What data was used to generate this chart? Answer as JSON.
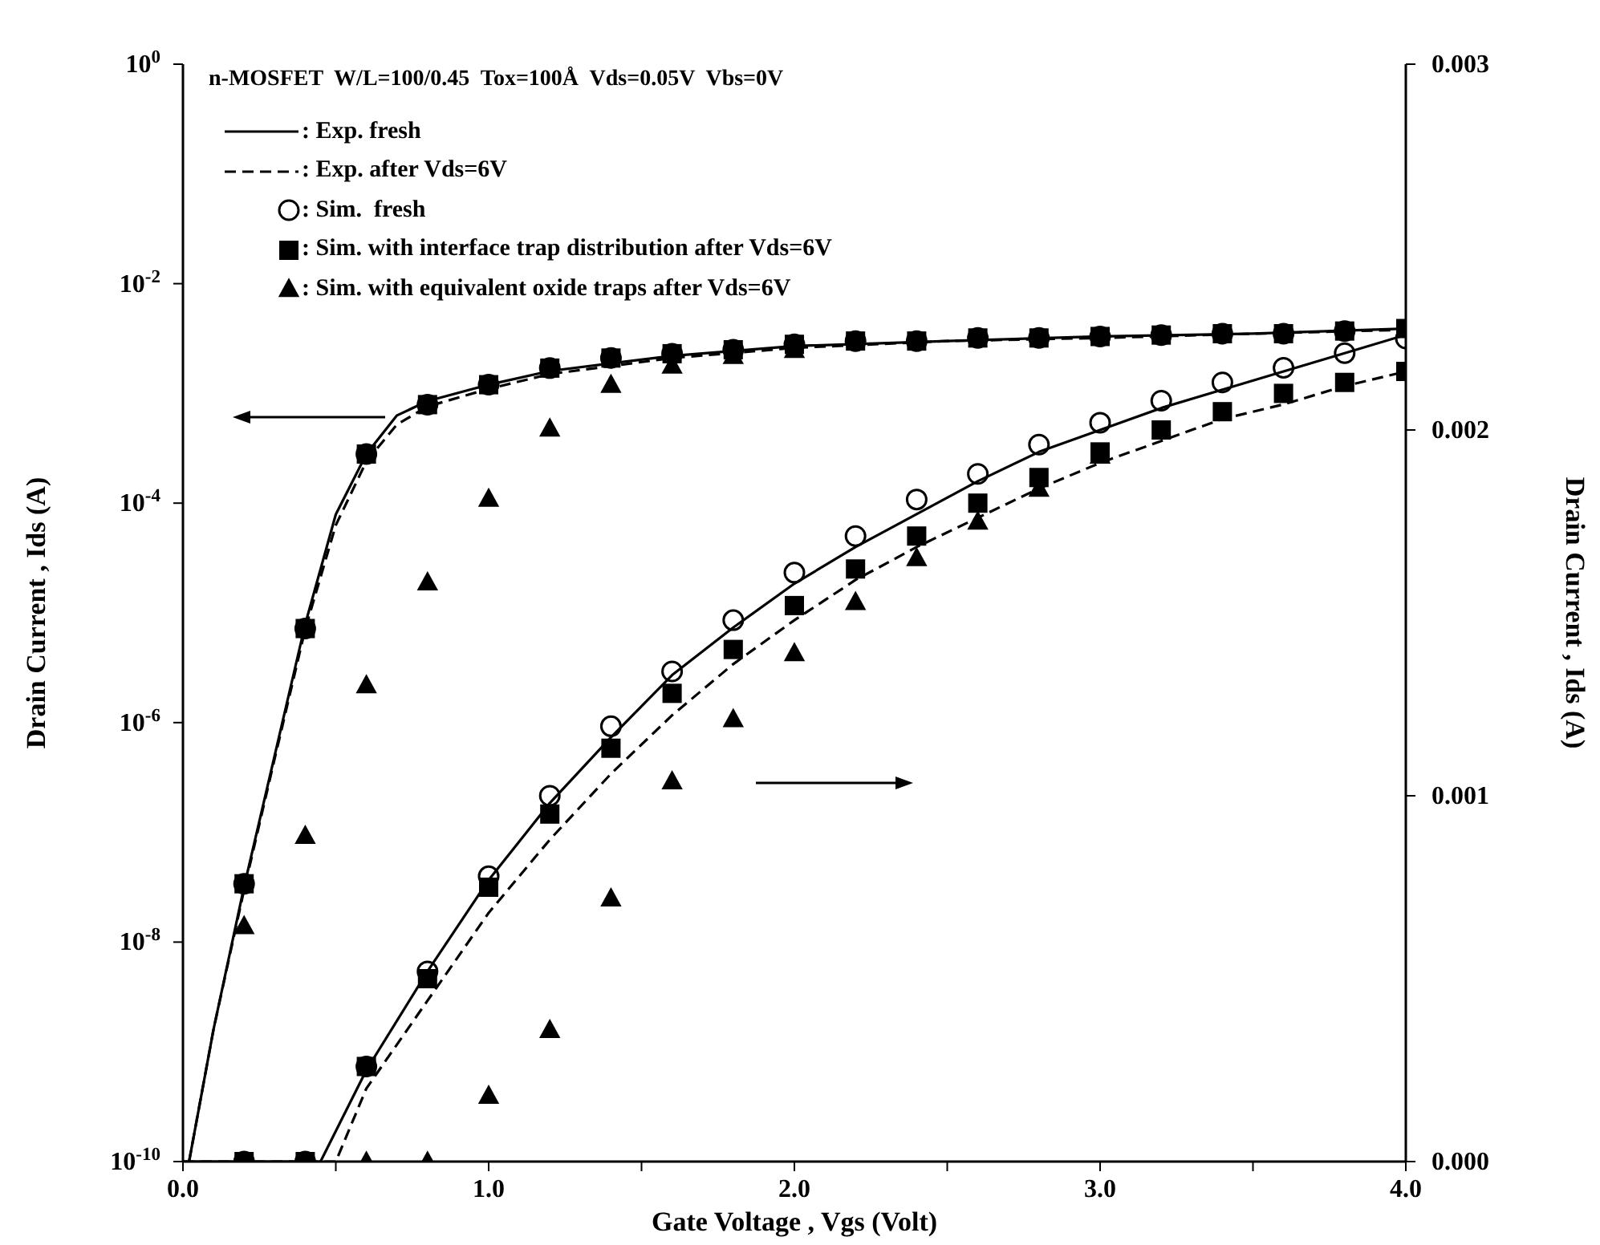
{
  "chart_data": {
    "type": "scatter",
    "title": "n-MOSFET  W/L=100/0.45  Tox=100Å  Vds=0.05V  Vbs=0V",
    "xlabel": "Gate Voltage , Vgs (Volt)",
    "ylabel": "Drain Current , Ids (A)",
    "y2label": "Drain Current , Ids (A)",
    "log": "y",
    "legend": "top left",
    "xlim": [
      0,
      4
    ],
    "xticks": [
      {
        "value": 0,
        "label": "0.0"
      },
      {
        "value": 0.5,
        "label": null
      },
      {
        "value": 1,
        "label": "1.0"
      },
      {
        "value": 1.5,
        "label": null
      },
      {
        "value": 2,
        "label": "2.0"
      },
      {
        "value": 2.5,
        "label": null
      },
      {
        "value": 3,
        "label": "3.0"
      },
      {
        "value": 3.5,
        "label": null
      },
      {
        "value": 4,
        "label": "4.0"
      }
    ],
    "ylim": [
      1e-10,
      1
    ],
    "yticks": [
      {
        "value": 1e-10,
        "label": "10$^{-10}$"
      },
      {
        "value": 1e-08,
        "label": "10$^{-8}$"
      },
      {
        "value": 1e-06,
        "label": "10$^{-6}$"
      },
      {
        "value": 0.0001,
        "label": "10$^{-4}$"
      },
      {
        "value": 0.01,
        "label": "10$^{-2}$"
      },
      {
        "value": 1,
        "label": "10$^{0}$"
      }
    ],
    "y2lim": [
      0,
      0.003
    ],
    "y2ticks": [
      {
        "value": 0,
        "label": "0.000"
      },
      {
        "value": 0.001,
        "label": "0.001"
      },
      {
        "value": 0.002,
        "label": "0.002"
      },
      {
        "value": 0.003,
        "label": "0.003"
      }
    ],
    "series": [
      {
        "name": ": Exp. fresh",
        "type": "line",
        "line_style": "solid",
        "marker": "none",
        "color": "#000000",
        "axis": "y",
        "x": [
          0.02,
          0.1,
          0.2,
          0.3,
          0.4,
          0.5,
          0.6,
          0.7,
          0.8,
          1.0,
          1.2,
          1.6,
          2.0,
          2.5,
          3.0,
          3.5,
          4.0
        ],
        "values": [
          1e-10,
          1.6e-09,
          3.2e-08,
          5e-07,
          7.9e-06,
          7.9e-05,
          0.00028,
          0.00063,
          0.00085,
          0.0012,
          0.0016,
          0.0022,
          0.0027,
          0.003,
          0.0033,
          0.0035,
          0.0039
        ]
      },
      {
        "name": ": Exp. after Vds=6V",
        "type": "line",
        "line_style": "dashed",
        "marker": "none",
        "color": "#000000",
        "axis": "y",
        "x": [
          0.02,
          0.1,
          0.2,
          0.3,
          0.4,
          0.5,
          0.6,
          0.7,
          0.8,
          1.0,
          1.2,
          1.6,
          2.0,
          2.5,
          3.0,
          3.5,
          4.0
        ],
        "values": [
          1e-10,
          1.6e-09,
          3e-08,
          4.7e-07,
          7.1e-06,
          6.3e-05,
          0.00024,
          0.00052,
          0.00076,
          0.0011,
          0.0015,
          0.0021,
          0.0026,
          0.003,
          0.0032,
          0.0035,
          0.0038
        ]
      },
      {
        "name": ": Sim.  fresh",
        "marker": "circle",
        "color": "#000000",
        "axis": "y",
        "x": [
          0.2,
          0.4,
          0.6,
          0.8,
          1.0,
          1.2,
          1.4,
          1.6,
          1.8,
          2.0,
          2.2,
          2.4,
          2.6,
          2.8,
          3.0,
          3.2,
          3.4,
          3.6,
          3.8
        ],
        "values": [
          3.4e-08,
          7.2e-06,
          0.00028,
          0.00079,
          0.0012,
          0.0017,
          0.0021,
          0.0023,
          0.0025,
          0.0028,
          0.003,
          0.003,
          0.0032,
          0.0032,
          0.0033,
          0.0034,
          0.0035,
          0.0035,
          0.0037
        ]
      },
      {
        "name": ": Sim. with interface trap distribution after Vds=6V",
        "marker": "square",
        "color": "#000000",
        "axis": "y",
        "x": [
          0.2,
          0.4,
          0.6,
          0.8,
          1.0,
          1.2,
          1.4,
          1.6,
          1.8,
          2.0,
          2.2,
          2.4,
          2.6,
          2.8,
          3.0,
          3.2,
          3.4,
          3.6,
          3.8,
          4.0
        ],
        "values": [
          3.4e-08,
          7.2e-06,
          0.00028,
          0.00079,
          0.0012,
          0.0017,
          0.0021,
          0.0023,
          0.0025,
          0.0028,
          0.003,
          0.003,
          0.0032,
          0.0032,
          0.0033,
          0.0034,
          0.0035,
          0.0035,
          0.0037,
          0.0039
        ]
      },
      {
        "name": ": Sim. with equivalent oxide traps after Vds=6V",
        "marker": "triangle",
        "color": "#000000",
        "axis": "y",
        "x": [
          0.2,
          0.4,
          0.6,
          0.8,
          1.0,
          1.2,
          1.4,
          1.6,
          1.8,
          2.0
        ],
        "values": [
          1.4e-08,
          9.3e-08,
          2.2e-06,
          1.9e-05,
          0.00011,
          0.00048,
          0.0012,
          0.0018,
          0.0022,
          0.0025
        ]
      },
      {
        "type": "line",
        "line_style": "solid",
        "marker": "none",
        "color": "#000000",
        "axis": "y2",
        "x": [
          0,
          0.45,
          0.6,
          0.8,
          1.0,
          1.2,
          1.4,
          1.6,
          1.8,
          2.0,
          2.2,
          2.4,
          2.6,
          2.8,
          3.0,
          3.2,
          3.4,
          3.6,
          3.8,
          4.0
        ],
        "values": [
          0,
          0,
          0.00025,
          0.00052,
          0.00077,
          0.00098,
          0.00116,
          0.00133,
          0.00146,
          0.00158,
          0.00168,
          0.00177,
          0.00186,
          0.00194,
          0.002,
          0.00206,
          0.00211,
          0.00216,
          0.00221,
          0.00226
        ]
      },
      {
        "type": "line",
        "line_style": "dashed",
        "marker": "none",
        "color": "#000000",
        "axis": "y2",
        "x": [
          0,
          0.5,
          0.6,
          0.8,
          1.0,
          1.2,
          1.4,
          1.6,
          1.8,
          2.0,
          2.2,
          2.4,
          2.6,
          2.8,
          3.0,
          3.2,
          3.4,
          3.6,
          3.8,
          4.0
        ],
        "values": [
          0,
          0,
          0.0002,
          0.00044,
          0.00068,
          0.00088,
          0.00106,
          0.00122,
          0.00136,
          0.00148,
          0.00159,
          0.00168,
          0.00176,
          0.00184,
          0.00191,
          0.00197,
          0.00203,
          0.00207,
          0.00212,
          0.00216
        ]
      },
      {
        "marker": "square",
        "color": "#000000",
        "axis": "y2",
        "x": [
          0.2,
          0.4,
          0.6,
          0.8,
          1.0,
          1.2,
          1.4,
          1.6,
          1.8,
          2.0,
          2.2,
          2.4,
          2.6,
          2.8,
          3.0,
          3.2,
          3.4,
          3.6,
          3.8,
          4.0
        ],
        "values": [
          0,
          0,
          0.00026,
          0.0005,
          0.00075,
          0.00095,
          0.00113,
          0.00128,
          0.0014,
          0.00152,
          0.00162,
          0.00171,
          0.0018,
          0.00187,
          0.00194,
          0.002,
          0.00205,
          0.0021,
          0.00213,
          0.00216
        ]
      },
      {
        "marker": "circle",
        "color": "#000000",
        "axis": "y2",
        "x": [
          0.2,
          0.4,
          0.6,
          0.8,
          1.0,
          1.2,
          1.4,
          1.6,
          1.8,
          2.0,
          2.2,
          2.4,
          2.6,
          2.8,
          3.0,
          3.2,
          3.4,
          3.6,
          3.8,
          4.0
        ],
        "values": [
          0,
          0,
          0.00026,
          0.00052,
          0.00078,
          0.001,
          0.00119,
          0.00134,
          0.00148,
          0.00161,
          0.00171,
          0.00181,
          0.00188,
          0.00196,
          0.00202,
          0.00208,
          0.00213,
          0.00217,
          0.00221,
          0.00225
        ]
      },
      {
        "marker": "triangle",
        "color": "#000000",
        "axis": "y2",
        "x": [
          0.6,
          0.8,
          1.0,
          1.2,
          1.4,
          1.6,
          1.8,
          2.0,
          2.2,
          2.4,
          2.6,
          2.8,
          3.0
        ],
        "values": [
          0,
          0,
          0.00018,
          0.00036,
          0.00072,
          0.00104,
          0.00121,
          0.00139,
          0.00153,
          0.00165,
          0.00175,
          0.00184,
          0.00193
        ]
      }
    ]
  }
}
